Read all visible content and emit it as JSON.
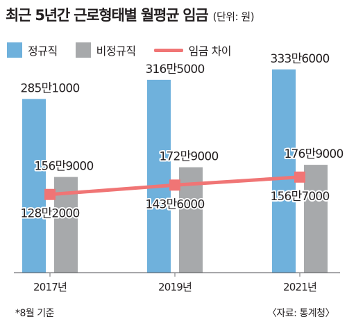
{
  "title": "최근 5년간 근로형태별 월평균 임금",
  "unit_note": "(단위: 원)",
  "footnote": "*8월 기준",
  "source": "〈자료: 통계청〉",
  "colors": {
    "regular": "#6fb1dc",
    "nonregular": "#a7a9ab",
    "gap": "#f07575",
    "axis": "#6d6e71"
  },
  "chart_data": {
    "type": "bar",
    "categories": [
      "2017년",
      "2019년",
      "2021년"
    ],
    "series": [
      {
        "name": "정규직",
        "type": "bar",
        "values": [
          2851000,
          3165000,
          3336000
        ],
        "labels": [
          "285만1000",
          "316만5000",
          "333만6000"
        ]
      },
      {
        "name": "비정규직",
        "type": "bar",
        "values": [
          1569000,
          1729000,
          1769000
        ],
        "labels": [
          "156만9000",
          "172만9000",
          "176만9000"
        ]
      },
      {
        "name": "임금 차이",
        "type": "line",
        "values": [
          1282000,
          1436000,
          1567000
        ],
        "labels": [
          "128만2000",
          "143만6000",
          "156만7000"
        ]
      }
    ],
    "ylim": [
      0,
      3700000
    ],
    "grid": false,
    "legend_position": "top-left"
  }
}
